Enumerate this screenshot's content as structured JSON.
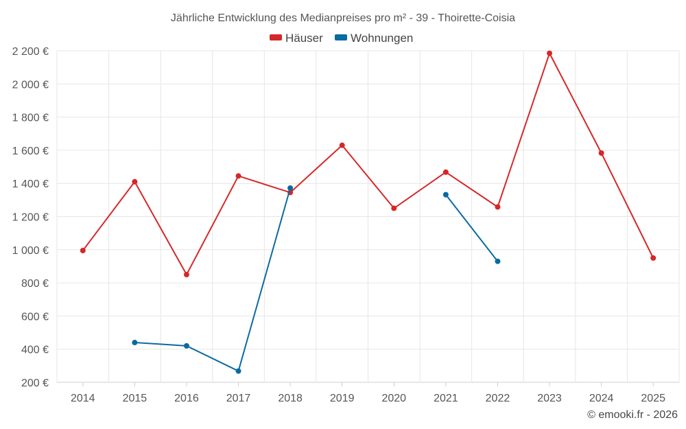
{
  "chart_data": {
    "type": "line",
    "title": "Jährliche Entwicklung des Medianpreises pro m² - 39 - Thoirette-Coisia",
    "categories": [
      "2014",
      "2015",
      "2016",
      "2017",
      "2018",
      "2019",
      "2020",
      "2021",
      "2022",
      "2023",
      "2024",
      "2025"
    ],
    "ylim": [
      200,
      2200
    ],
    "yticks": [
      200,
      400,
      600,
      800,
      1000,
      1200,
      1400,
      1600,
      1800,
      2000,
      2200
    ],
    "ytick_labels": [
      "200 €",
      "400 €",
      "600 €",
      "800 €",
      "1 000 €",
      "1 200 €",
      "1 400 €",
      "1 600 €",
      "1 800 €",
      "2 000 €",
      "2 200 €"
    ],
    "grid": true,
    "legend_position": "top-center",
    "series": [
      {
        "name": "Häuser",
        "color": "#d62728",
        "values": [
          995,
          1410,
          850,
          1445,
          1345,
          1630,
          1250,
          1468,
          1258,
          2185,
          1583,
          950
        ]
      },
      {
        "name": "Wohnungen",
        "color": "#0a6aa1",
        "values": [
          null,
          440,
          420,
          268,
          1372,
          null,
          null,
          1332,
          930,
          null,
          null,
          null
        ]
      }
    ]
  },
  "credit": "© emooki.fr - 2026"
}
